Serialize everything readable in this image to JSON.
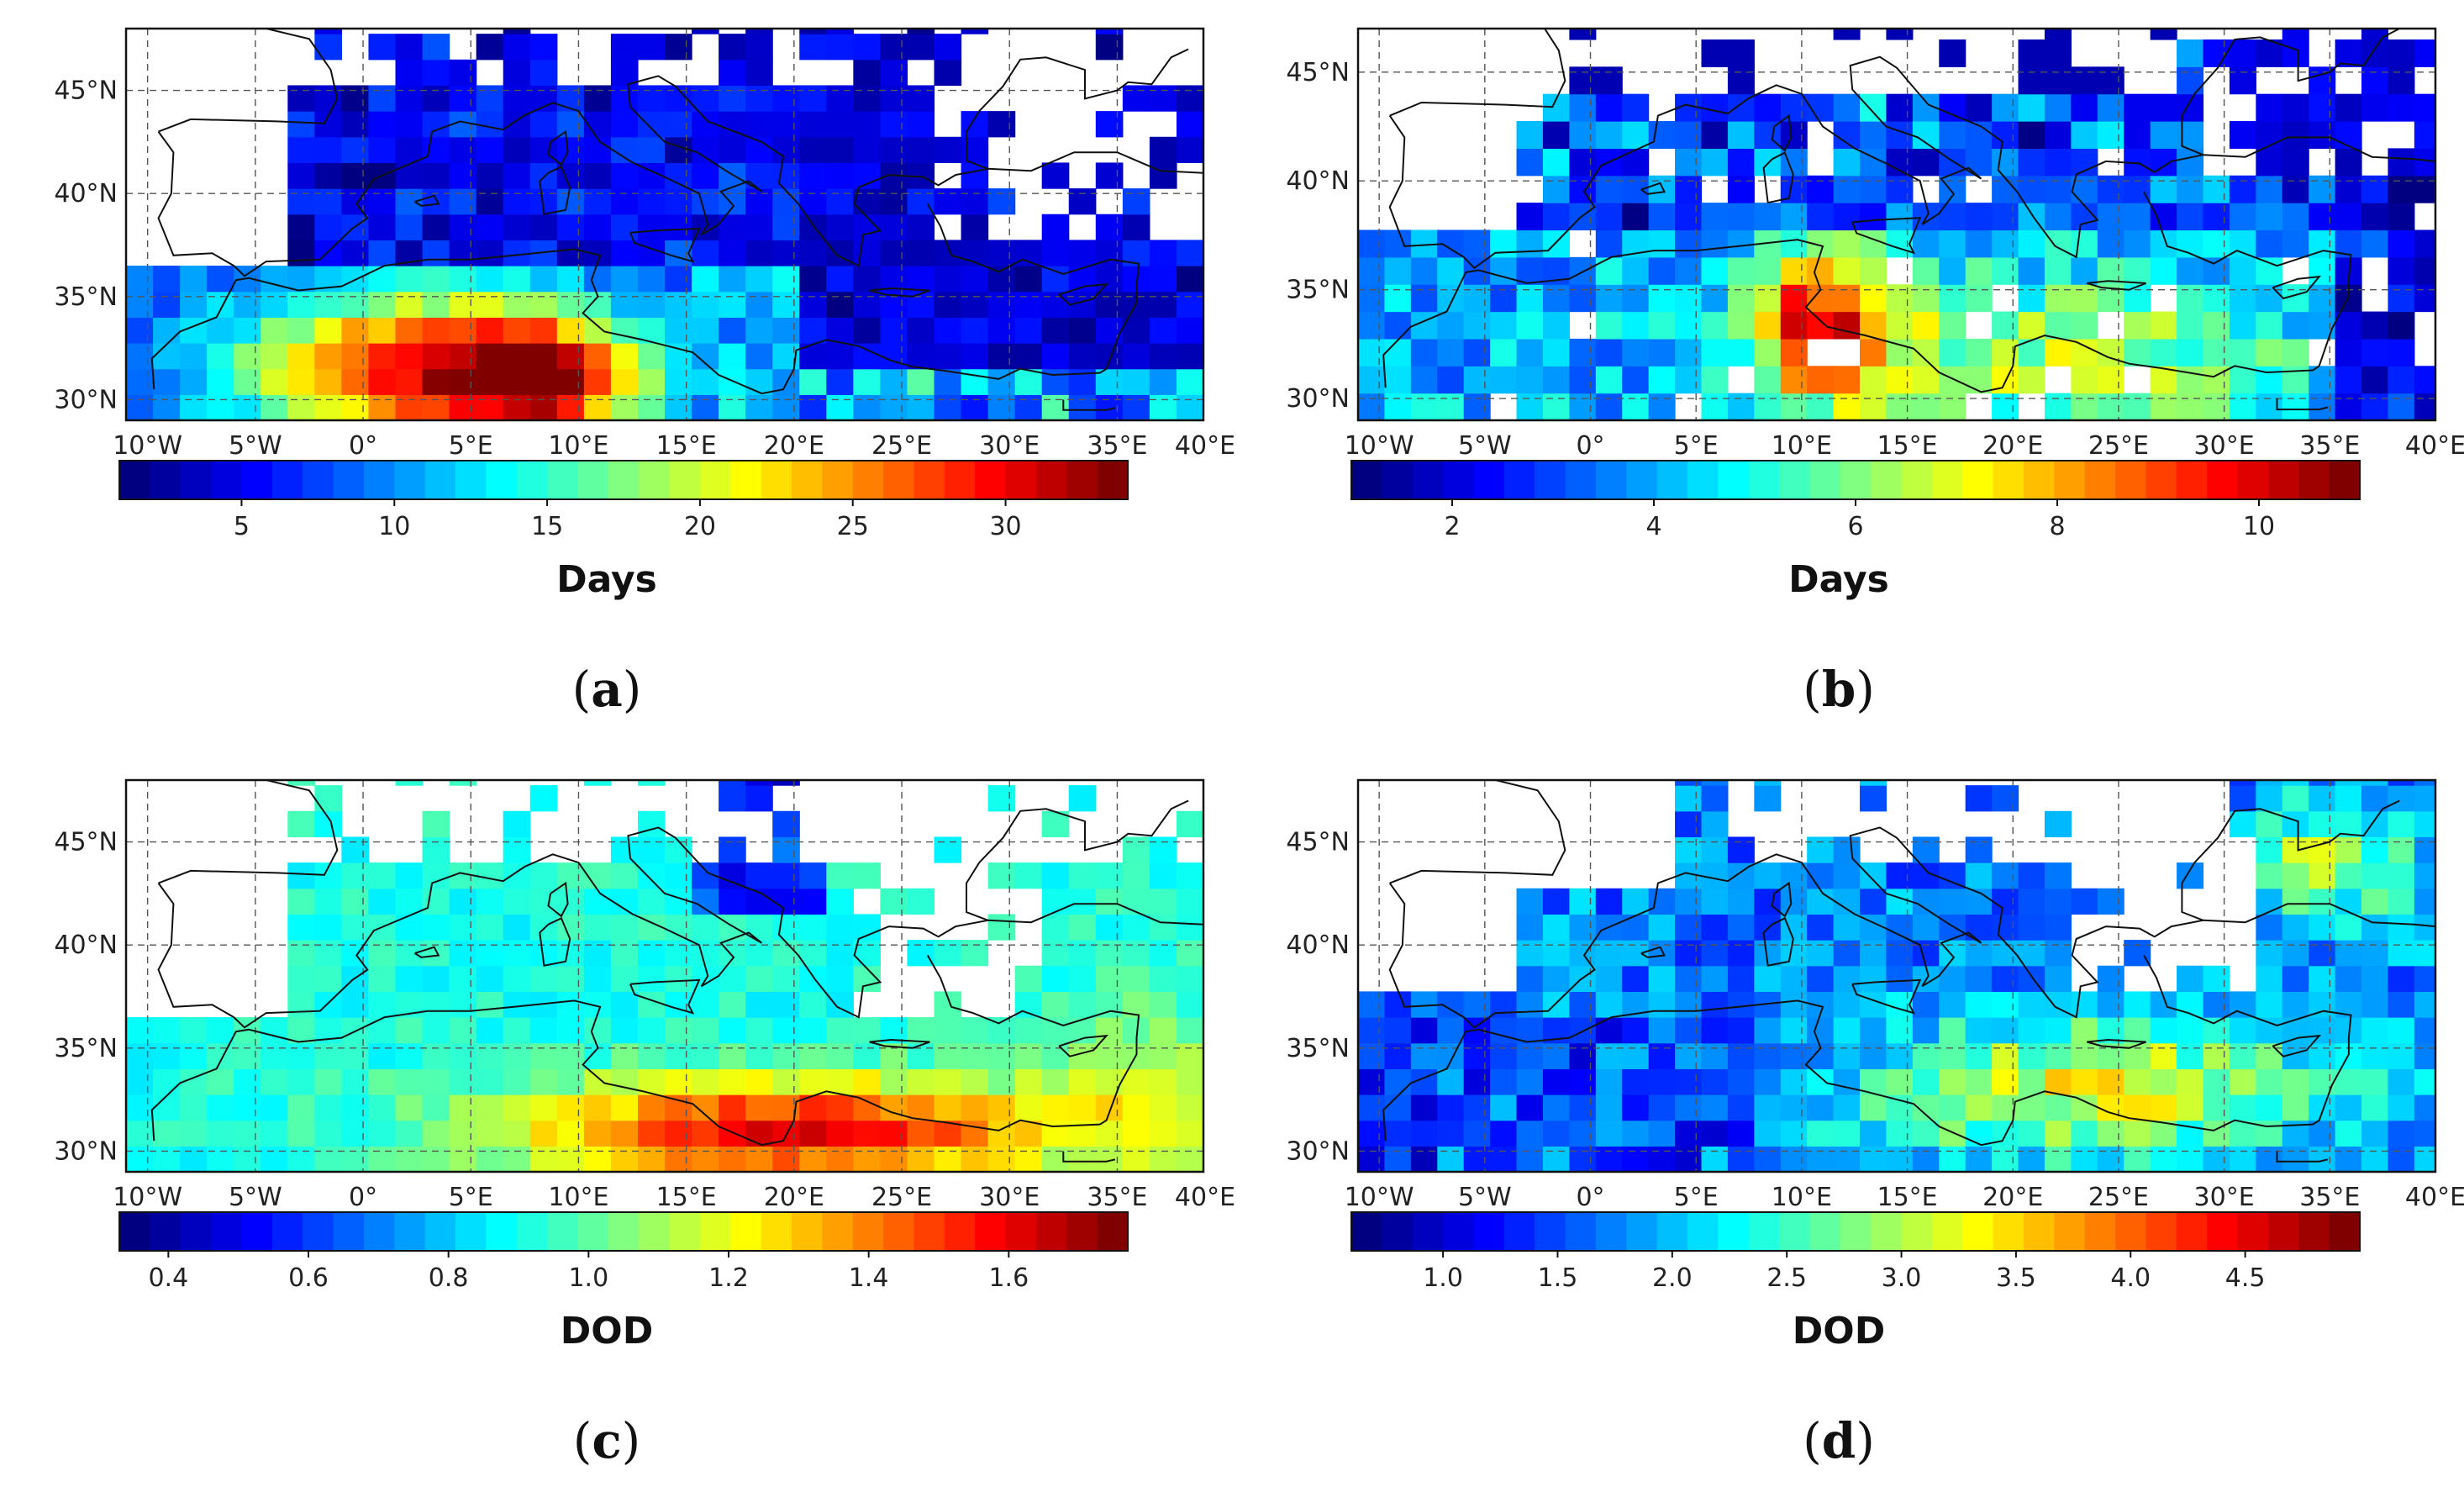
{
  "chart_data": [
    {
      "id": "a",
      "type": "heatmap",
      "panel_label": "a",
      "colorbar_label": "Days",
      "colorbar_ticks": [
        "5",
        "10",
        "15",
        "20",
        "25",
        "30"
      ],
      "colorbar_tick_values": [
        5,
        10,
        15,
        20,
        25,
        30
      ],
      "vmin": 1,
      "vmax": 34,
      "xlim": [
        -11,
        39
      ],
      "ylim": [
        29,
        48
      ],
      "x_ticks": [
        "10°W",
        "5°W",
        "0°",
        "5°E",
        "10°E",
        "15°E",
        "20°E",
        "25°E",
        "30°E",
        "35°E",
        "40°E"
      ],
      "x_tick_values": [
        -10,
        -5,
        0,
        5,
        10,
        15,
        20,
        25,
        30,
        35,
        40
      ],
      "y_ticks": [
        "30°N",
        "35°N",
        "40°N",
        "45°N"
      ],
      "y_tick_values": [
        30,
        35,
        40,
        45
      ],
      "pattern": "a",
      "seed": 11
    },
    {
      "id": "b",
      "type": "heatmap",
      "panel_label": "b",
      "colorbar_label": "Days",
      "colorbar_ticks": [
        "2",
        "4",
        "6",
        "8",
        "10"
      ],
      "colorbar_tick_values": [
        2,
        4,
        6,
        8,
        10
      ],
      "vmin": 1,
      "vmax": 11,
      "xlim": [
        -11,
        40
      ],
      "ylim": [
        29,
        47
      ],
      "x_ticks": [
        "10°W",
        "5°W",
        "0°",
        "5°E",
        "10°E",
        "15°E",
        "20°E",
        "25°E",
        "30°E",
        "35°E",
        "40°E"
      ],
      "x_tick_values": [
        -10,
        -5,
        0,
        5,
        10,
        15,
        20,
        25,
        30,
        35,
        40
      ],
      "y_ticks": [
        "30°N",
        "35°N",
        "40°N",
        "45°N"
      ],
      "y_tick_values": [
        30,
        35,
        40,
        45
      ],
      "pattern": "b",
      "seed": 23
    },
    {
      "id": "c",
      "type": "heatmap",
      "panel_label": "c",
      "colorbar_label": "DOD",
      "colorbar_ticks": [
        "0.4",
        "0.6",
        "0.8",
        "1.0",
        "1.2",
        "1.4",
        "1.6"
      ],
      "colorbar_tick_values": [
        0.4,
        0.6,
        0.8,
        1.0,
        1.2,
        1.4,
        1.6
      ],
      "vmin": 0.33,
      "vmax": 1.77,
      "xlim": [
        -11,
        39
      ],
      "ylim": [
        29,
        48
      ],
      "x_ticks": [
        "10°W",
        "5°W",
        "0°",
        "5°E",
        "10°E",
        "15°E",
        "20°E",
        "25°E",
        "30°E",
        "35°E",
        "40°E"
      ],
      "x_tick_values": [
        -10,
        -5,
        0,
        5,
        10,
        15,
        20,
        25,
        30,
        35,
        40
      ],
      "y_ticks": [
        "30°N",
        "35°N",
        "40°N",
        "45°N"
      ],
      "y_tick_values": [
        30,
        35,
        40,
        45
      ],
      "pattern": "c",
      "seed": 37
    },
    {
      "id": "d",
      "type": "heatmap",
      "panel_label": "d",
      "colorbar_label": "DOD",
      "colorbar_ticks": [
        "1.0",
        "1.5",
        "2.0",
        "2.5",
        "3.0",
        "3.5",
        "4.0",
        "4.5"
      ],
      "colorbar_tick_values": [
        1.0,
        1.5,
        2.0,
        2.5,
        3.0,
        3.5,
        4.0,
        4.5
      ],
      "vmin": 0.6,
      "vmax": 5.0,
      "xlim": [
        -11,
        40
      ],
      "ylim": [
        29,
        48
      ],
      "x_ticks": [
        "10°W",
        "5°W",
        "0°",
        "5°E",
        "10°E",
        "15°E",
        "20°E",
        "25°E",
        "30°E",
        "35°E",
        "40°E"
      ],
      "x_tick_values": [
        -10,
        -5,
        0,
        5,
        10,
        15,
        20,
        25,
        30,
        35,
        40
      ],
      "y_ticks": [
        "30°N",
        "35°N",
        "40°N",
        "45°N"
      ],
      "y_tick_values": [
        30,
        35,
        40,
        45
      ],
      "pattern": "d",
      "seed": 53
    }
  ]
}
